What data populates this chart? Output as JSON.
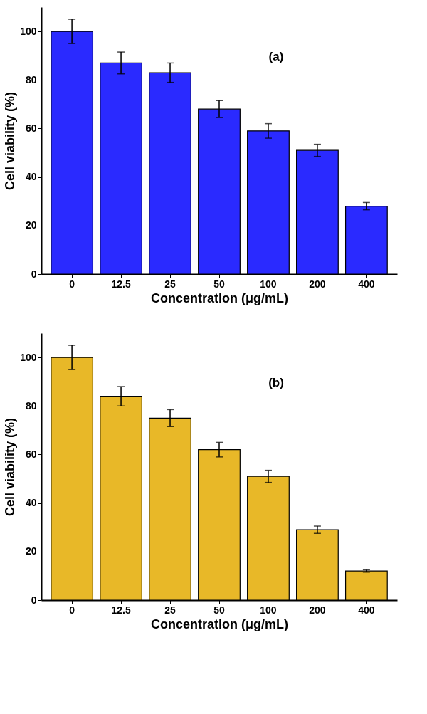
{
  "chart_data": [
    {
      "type": "bar",
      "xlabel": "Concentration (μg/mL)",
      "ylabel": "Cell viability (%)",
      "categories": [
        "0",
        "12.5",
        "25",
        "50",
        "100",
        "200",
        "400"
      ],
      "ylim": [
        0,
        110
      ],
      "yticks": [
        0,
        20,
        40,
        60,
        80,
        100
      ],
      "annotations": [
        "(a)"
      ],
      "series": [
        {
          "color": "#2a2aff",
          "values": [
            100,
            87,
            83,
            68,
            59,
            51,
            28
          ],
          "errors": [
            5,
            4.5,
            4,
            3.5,
            3,
            2.5,
            1.5
          ]
        }
      ]
    },
    {
      "type": "bar",
      "xlabel": "Concentration (μg/mL)",
      "ylabel": "Cell viability (%)",
      "categories": [
        "0",
        "12.5",
        "25",
        "50",
        "100",
        "200",
        "400"
      ],
      "ylim": [
        0,
        110
      ],
      "yticks": [
        0,
        20,
        40,
        60,
        80,
        100
      ],
      "annotations": [
        "(b)"
      ],
      "series": [
        {
          "color": "#e8b828",
          "values": [
            100,
            84,
            75,
            62,
            51,
            29,
            12
          ],
          "errors": [
            5,
            4,
            3.5,
            3,
            2.5,
            1.5,
            0.5
          ]
        }
      ]
    }
  ]
}
